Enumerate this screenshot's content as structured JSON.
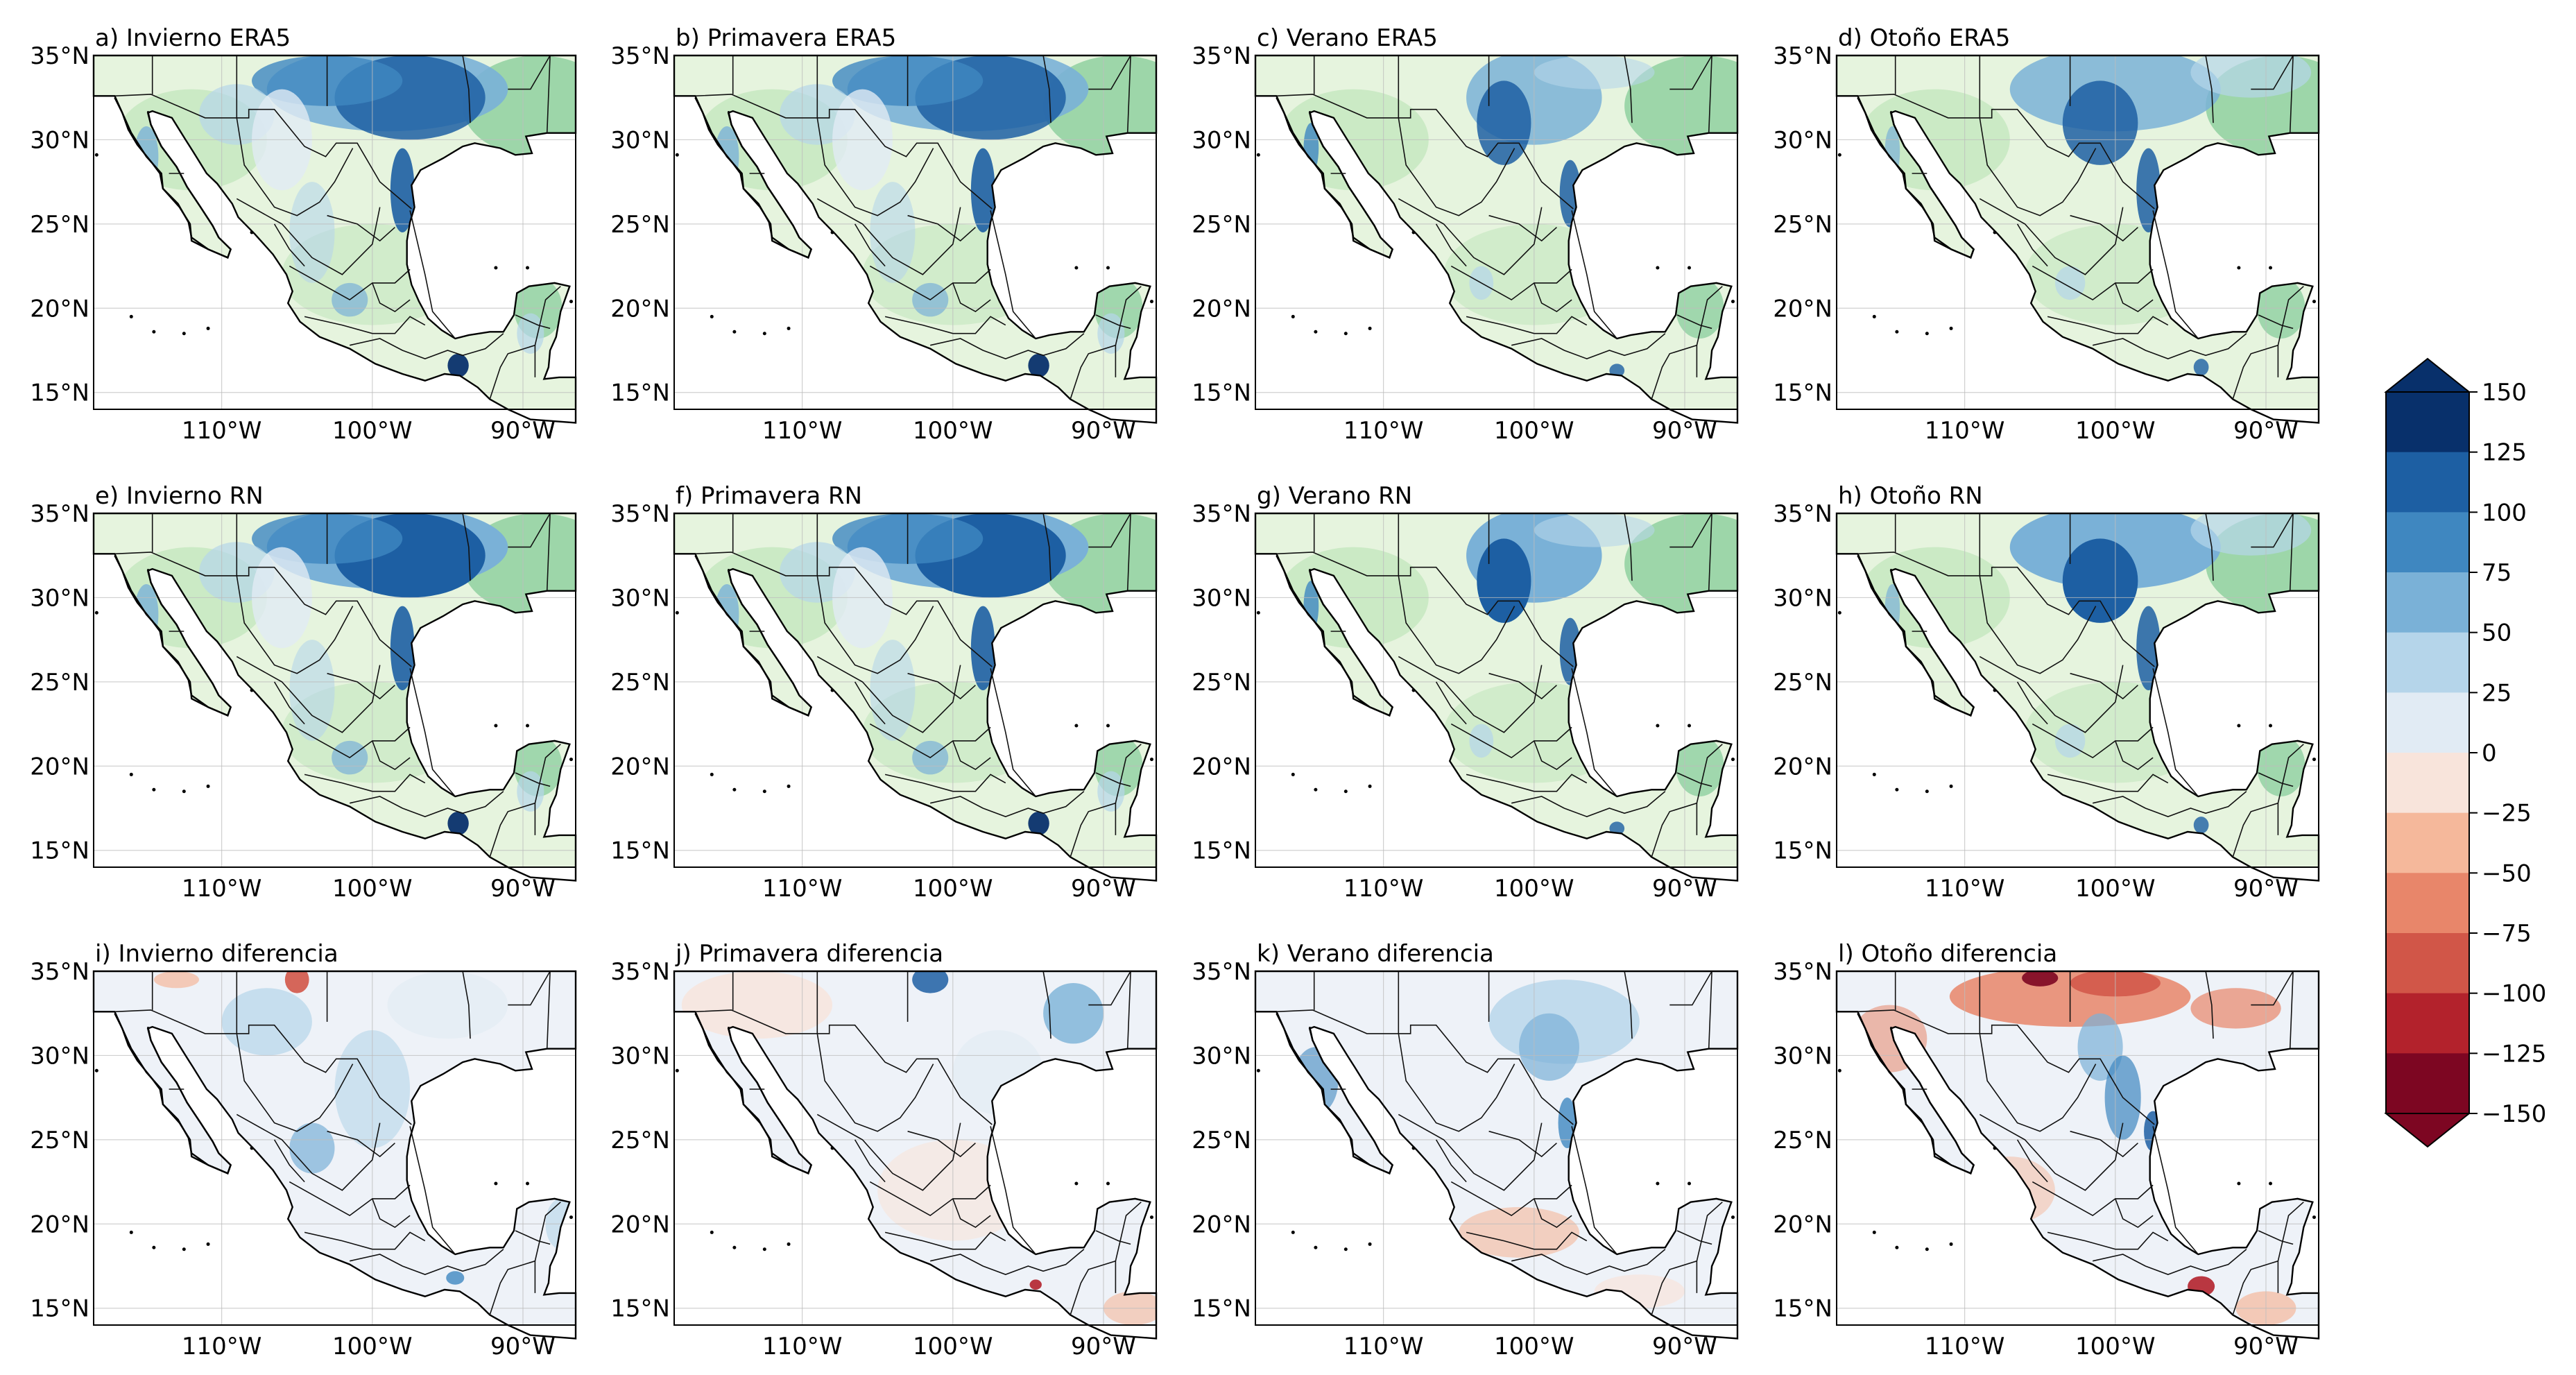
{
  "panels": [
    {
      "title": "a) Invierno ERA5",
      "mode": "abs",
      "season": "winter"
    },
    {
      "title": "b) Primavera ERA5",
      "mode": "abs",
      "season": "spring"
    },
    {
      "title": "c) Verano ERA5",
      "mode": "abs",
      "season": "summer"
    },
    {
      "title": "d) Otoño ERA5",
      "mode": "abs",
      "season": "autumn"
    },
    {
      "title": "e) Invierno RN",
      "mode": "abs",
      "season": "winter"
    },
    {
      "title": "f) Primavera RN",
      "mode": "abs",
      "season": "spring"
    },
    {
      "title": "g) Verano RN",
      "mode": "abs",
      "season": "summer"
    },
    {
      "title": "h) Otoño RN",
      "mode": "abs",
      "season": "autumn"
    },
    {
      "title": "i) Invierno diferencia",
      "mode": "diff",
      "season": "winter"
    },
    {
      "title": "j) Primavera diferencia",
      "mode": "diff",
      "season": "spring"
    },
    {
      "title": "k) Verano diferencia",
      "mode": "diff",
      "season": "summer"
    },
    {
      "title": "l) Otoño diferencia",
      "mode": "diff",
      "season": "autumn"
    }
  ],
  "lat_ticks": [
    "35°N",
    "30°N",
    "25°N",
    "20°N",
    "15°N"
  ],
  "lon_ticks": [
    "110°W",
    "100°W",
    "90°W"
  ],
  "colorbar": {
    "ticks": [
      "150",
      "125",
      "100",
      "75",
      "50",
      "25",
      "0",
      "−25",
      "−50",
      "−75",
      "−100",
      "−125",
      "−150"
    ],
    "colors_top_to_bottom": [
      "#08306b",
      "#1d5fa3",
      "#3f87c0",
      "#7ab1d7",
      "#b5d5ea",
      "#e1ebf4",
      "#f8e4db",
      "#f5b89b",
      "#e8866a",
      "#d15648",
      "#b3222c",
      "#7d0622"
    ],
    "extend": "both"
  },
  "colors": {
    "land_base": "#e6f4de",
    "ocean": "#ffffff",
    "green_mid": "#b9e2b4",
    "green_dark": "#8fd0a0",
    "diff_base": "#eef2f8"
  }
}
